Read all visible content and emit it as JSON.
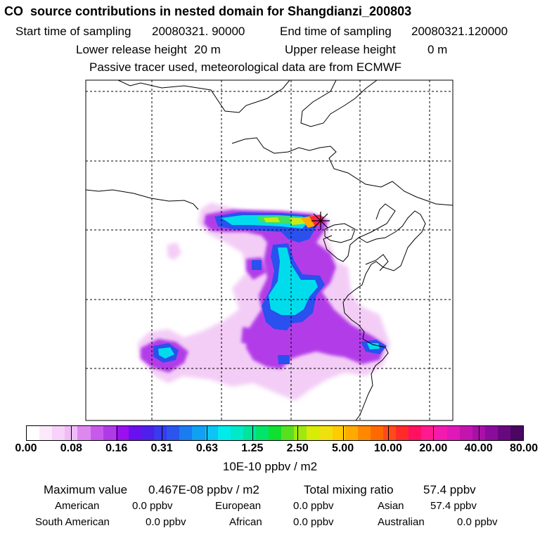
{
  "header": {
    "title": "CO  source contributions in nested domain for Shangdianzi_200803",
    "start_label": "Start time of sampling",
    "start_value": "20080321. 90000",
    "end_label": "End time of sampling",
    "end_value": "20080321.120000",
    "lower_label": "Lower release height",
    "lower_value": "20 m",
    "upper_label": "Upper release height",
    "upper_value": "0 m",
    "note": "Passive tracer used, meteorological data are from ECMWF"
  },
  "map": {
    "receptor_marker": "asterisk-icon",
    "colors": {
      "frame": "#000000",
      "grid": "#000000",
      "coast": "#000000"
    }
  },
  "colorbar": {
    "colors": [
      "#ffffff",
      "#fbe9fb",
      "#f6d2f8",
      "#eebdf5",
      "#dd88ee",
      "#c75aeb",
      "#b03ae6",
      "#9a10ee",
      "#6a10ee",
      "#4d20ec",
      "#3a3aee",
      "#2b55ee",
      "#1a7cf0",
      "#11a0f2",
      "#0dc4f5",
      "#00ecec",
      "#00e9c8",
      "#00e59c",
      "#00e46a",
      "#10e030",
      "#58e020",
      "#a0e810",
      "#d8ec08",
      "#f0e010",
      "#ffcc00",
      "#ffaa00",
      "#ff8800",
      "#ff6a00",
      "#ff4a1a",
      "#ff2a2a",
      "#ff1060",
      "#ff1a90",
      "#f31ab0",
      "#df18b8",
      "#c414b0",
      "#a810a8",
      "#8a0c9c",
      "#68087e",
      "#4a0660"
    ],
    "tick_labels": [
      "0.00",
      "0.08",
      "0.16",
      "0.31",
      "0.63",
      "1.25",
      "2.50",
      "5.00",
      "10.00",
      "20.00",
      "40.00",
      "80.00"
    ],
    "units": "10E-10 ppbv / m2"
  },
  "footer": {
    "max_label": "Maximum value",
    "max_value": "0.467E-08 ppbv / m2",
    "total_label": "Total mixing ratio",
    "total_value": "57.4 ppbv",
    "sources": [
      {
        "label": "American",
        "value": "0.0 ppbv"
      },
      {
        "label": "European",
        "value": "0.0 ppbv"
      },
      {
        "label": "Asian",
        "value": "57.4 ppbv"
      },
      {
        "label": "South American",
        "value": "0.0 ppbv"
      },
      {
        "label": "African",
        "value": "0.0 ppbv"
      },
      {
        "label": "Australian",
        "value": "0.0 ppbv"
      }
    ]
  }
}
